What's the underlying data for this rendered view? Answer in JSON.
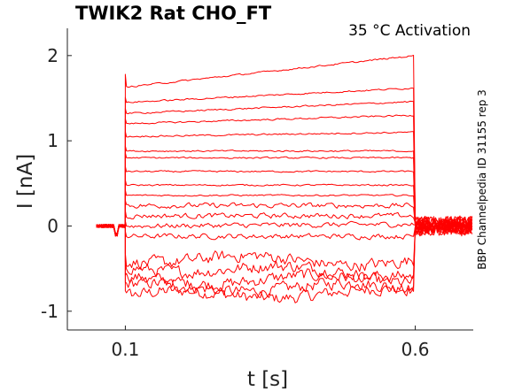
{
  "chart_data": {
    "type": "line",
    "title": "TWIK2  Rat  CHO_FT",
    "subtitle": "35 °C  Activation",
    "side_label": "BBP Channelpedia ID 31155 rep 3",
    "xlabel": "t [s]",
    "ylabel": "I [nA]",
    "xlim": [
      0.0,
      0.7
    ],
    "ylim": [
      -1.22,
      2.32
    ],
    "xticks": [
      0.1,
      0.6
    ],
    "xtick_labels": [
      "0.1",
      "0.6"
    ],
    "yticks": [
      -1,
      0,
      1,
      2
    ],
    "ytick_labels": [
      "-1",
      "0",
      "1",
      "2"
    ],
    "grid": false,
    "line_color": "#ff0000",
    "step_start": 0.1,
    "step_end": 0.6,
    "baseline": 0.0,
    "peak_at_onset": 1.78,
    "series_step_levels": [
      {
        "start": -0.82,
        "end": -0.78
      },
      {
        "start": -0.72,
        "end": -0.72
      },
      {
        "start": -0.64,
        "end": -0.62
      },
      {
        "start": -0.48,
        "end": -0.55
      },
      {
        "start": -0.38,
        "end": -0.42
      },
      {
        "start": -0.12,
        "end": -0.12
      },
      {
        "start": 0.0,
        "end": 0.02
      },
      {
        "start": 0.12,
        "end": 0.12
      },
      {
        "start": 0.24,
        "end": 0.24
      },
      {
        "start": 0.36,
        "end": 0.36
      },
      {
        "start": 0.48,
        "end": 0.48
      },
      {
        "start": 0.64,
        "end": 0.64
      },
      {
        "start": 0.8,
        "end": 0.8
      },
      {
        "start": 0.88,
        "end": 0.88
      },
      {
        "start": 1.05,
        "end": 1.1
      },
      {
        "start": 1.2,
        "end": 1.3
      },
      {
        "start": 1.32,
        "end": 1.46
      },
      {
        "start": 1.45,
        "end": 1.62
      },
      {
        "start": 1.63,
        "end": 2.0
      }
    ]
  }
}
